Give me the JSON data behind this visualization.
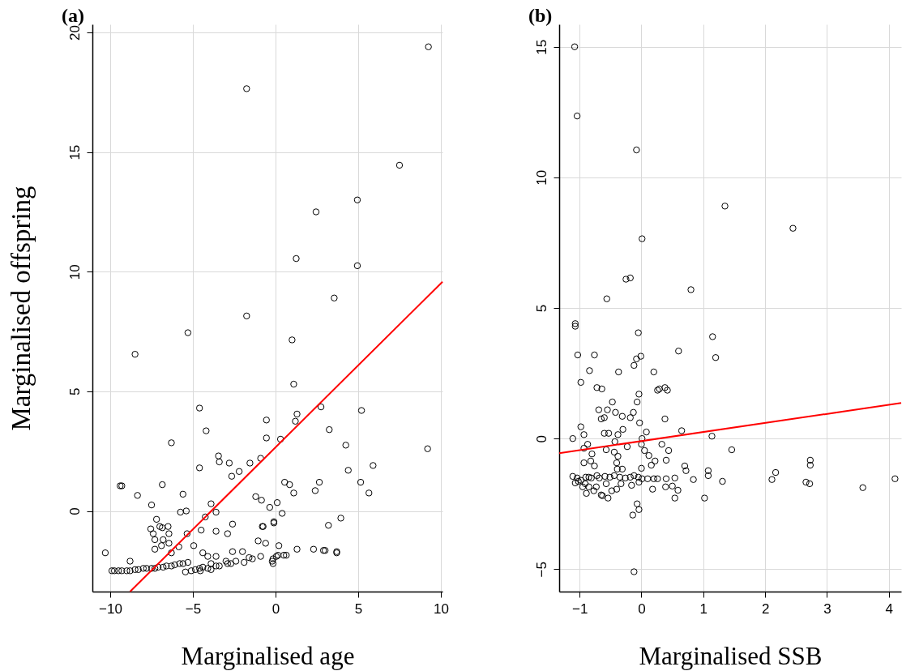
{
  "chart_data": [
    {
      "type": "scatter",
      "title": "(a)",
      "xlabel": "Marginalised age",
      "ylabel": "Marginalised  offspring",
      "xlim": [
        -11.08,
        10.1
      ],
      "ylim": [
        -3.37,
        20.34
      ],
      "xticks": [
        -10,
        -5,
        0,
        5,
        10
      ],
      "yticks": [
        0,
        5,
        10,
        15,
        20
      ],
      "grid": true,
      "series": [
        {
          "type": "scatter",
          "marker": "circle",
          "color": "#000000",
          "x": [
            -10.3,
            -9.9,
            -9.75,
            -9.5,
            -9.3,
            -9.0,
            -8.8,
            -8.5,
            -8.3,
            -8.0,
            -7.8,
            -7.5,
            -7.3,
            -7.1,
            -6.8,
            -6.6,
            -6.3,
            -6.1,
            -5.8,
            -5.6,
            -5.3,
            -5.1,
            -4.85,
            -4.6,
            -4.4,
            -4.1,
            -3.9,
            -3.6,
            -3.4,
            -2.9,
            -2.4,
            -1.9,
            -1.4,
            -0.9,
            -0.2,
            0.05,
            0.5,
            1.3,
            2.3,
            3.0,
            3.7,
            -9.4,
            -9.3,
            -8.35,
            -6.85,
            -7.5,
            -7.2,
            -7.55,
            -7.4,
            -7.3,
            -7.3,
            -7.0,
            -6.85,
            -6.5,
            -6.45,
            -6.8,
            -6.45,
            -6.9,
            -8.8,
            -5.75,
            -5.4,
            -5.6,
            -4.6,
            -3.9,
            -3.6,
            -4.25,
            -5.35,
            -4.5,
            -3.6,
            -4.95,
            -5.85,
            -6.3,
            -4.4,
            -4.1,
            -3.6,
            -2.6,
            -2.0,
            -1.6,
            -3.0,
            -2.7,
            -2.9,
            -2.6,
            -1.05,
            -0.6,
            -0.8,
            -1.2,
            -0.85,
            -0.35,
            -0.1,
            -0.15,
            -0.15,
            -2.2,
            -2.65,
            -1.55,
            -2.8,
            -3.45,
            -3.4,
            -0.9,
            0.1,
            -3.9,
            -4.55,
            -5.45,
            1.0,
            1.1,
            1.3,
            1.2,
            2.75,
            5.2,
            -0.55,
            -0.55,
            0.3,
            3.25,
            4.25,
            9.2,
            5.9,
            4.4,
            0.55,
            0.85,
            1.1,
            2.65,
            2.4,
            5.15,
            5.65,
            0.4,
            -0.1,
            -0.75,
            3.95,
            3.2,
            0.2,
            2.9,
            3.7,
            0.15,
            0.65,
            -1.75,
            9.25,
            7.5,
            4.95,
            2.45,
            1.25,
            4.95,
            3.55,
            -1.75,
            -5.3,
            -8.5,
            -6.3,
            -4.6,
            -4.2
          ],
          "values": [
            -1.75,
            -2.5,
            -2.5,
            -2.5,
            -2.5,
            -2.5,
            -2.5,
            -2.45,
            -2.45,
            -2.4,
            -2.4,
            -2.4,
            -2.4,
            -2.35,
            -2.35,
            -2.3,
            -2.3,
            -2.25,
            -2.2,
            -2.2,
            -2.15,
            -2.5,
            -2.45,
            -2.4,
            -2.35,
            -2.4,
            -2.45,
            -2.3,
            -2.3,
            -2.2,
            -2.1,
            -2.15,
            -2.0,
            -1.9,
            -2.1,
            -1.9,
            -1.85,
            -1.6,
            -1.6,
            -1.65,
            -1.7,
            1.05,
            1.05,
            0.65,
            1.1,
            0.25,
            -0.35,
            -0.75,
            -0.95,
            -1.2,
            -1.6,
            -0.65,
            -0.7,
            -0.65,
            -0.95,
            -1.2,
            -1.35,
            -1.45,
            -2.1,
            -0.05,
            0.0,
            0.7,
            1.8,
            0.3,
            -0.05,
            -0.25,
            -0.95,
            -0.8,
            -0.85,
            -1.45,
            -1.5,
            -1.75,
            -1.75,
            -1.9,
            -1.9,
            -1.7,
            -1.7,
            -1.95,
            -2.1,
            -2.2,
            -0.95,
            -0.55,
            -1.25,
            -1.35,
            -0.65,
            0.6,
            0.45,
            0.15,
            -0.5,
            -2.0,
            -2.2,
            1.65,
            1.45,
            2.0,
            2.0,
            2.3,
            2.05,
            2.2,
            0.35,
            -2.2,
            -2.5,
            -2.55,
            7.15,
            5.3,
            4.05,
            3.75,
            4.35,
            4.2,
            3.8,
            3.05,
            3.0,
            3.4,
            2.75,
            2.6,
            1.9,
            1.7,
            1.2,
            1.1,
            0.75,
            1.2,
            0.85,
            1.2,
            0.75,
            -0.1,
            -0.45,
            -0.65,
            -0.3,
            -0.6,
            -1.45,
            -1.65,
            -1.75,
            -1.85,
            -1.85,
            17.65,
            19.4,
            14.45,
            13.0,
            12.5,
            10.55,
            10.25,
            8.9,
            8.15,
            7.45,
            6.55,
            2.85,
            4.3,
            3.35
          ]
        },
        {
          "type": "line",
          "color": "#ff0000",
          "x": [
            -8.8,
            10.1
          ],
          "values": [
            -3.37,
            9.58
          ]
        }
      ]
    },
    {
      "type": "scatter",
      "title": "(b)",
      "xlabel": "Marginalised SSB",
      "xlim": [
        -1.33,
        4.2
      ],
      "ylim": [
        -5.86,
        15.86
      ],
      "xticks": [
        -1,
        0,
        1,
        2,
        3,
        4
      ],
      "yticks": [
        -5,
        0,
        5,
        10,
        15
      ],
      "grid": true,
      "series": [
        {
          "type": "scatter",
          "marker": "circle",
          "color": "#000000",
          "x": [
            -1.08,
            -1.04,
            -0.08,
            0.01,
            1.35,
            2.45,
            0.8,
            -0.56,
            -0.25,
            -0.18,
            1.15,
            1.2,
            0.6,
            -1.07,
            -1.07,
            -0.05,
            -1.03,
            -0.76,
            -0.08,
            -0.01,
            -0.12,
            -0.84,
            -0.37,
            0.2,
            -0.98,
            -0.72,
            -0.64,
            0.26,
            0.29,
            0.38,
            0.42,
            -0.04,
            -0.07,
            -0.47,
            -0.69,
            -0.55,
            -0.42,
            -0.13,
            -0.65,
            -0.6,
            -0.31,
            -0.18,
            0.38,
            -0.03,
            -0.98,
            -0.3,
            -0.93,
            -0.6,
            -0.53,
            -0.38,
            0.08,
            0.65,
            -1.11,
            0.01,
            -0.43,
            -0.87,
            -0.93,
            -0.23,
            0.0,
            -0.57,
            0.05,
            -0.8,
            -0.44,
            -0.38,
            0.12,
            0.33,
            0.44,
            0.4,
            0.22,
            0.16,
            -0.93,
            -0.82,
            -0.76,
            -0.4,
            -0.39,
            -0.31,
            0.0,
            0.7,
            0.72,
            -1.11,
            -1.04,
            -0.98,
            -0.91,
            -0.85,
            -0.77,
            -1.07,
            -1.02,
            -0.95,
            -0.89,
            -0.9,
            -0.85,
            -0.81,
            -0.72,
            -0.68,
            -0.59,
            -0.51,
            -0.44,
            -0.35,
            -0.26,
            -0.18,
            -0.12,
            -0.05,
            0.01,
            0.1,
            0.2,
            0.26,
            0.4,
            0.54,
            -0.73,
            -0.57,
            -0.48,
            -0.4,
            -0.33,
            -0.16,
            -0.04,
            0.18,
            0.39,
            0.5,
            0.59,
            0.54,
            -0.65,
            -0.63,
            -0.54,
            -0.07,
            -0.04,
            -0.14,
            -0.12,
            1.14,
            1.46,
            1.08,
            1.08,
            0.84,
            1.31,
            1.02,
            2.17,
            2.11,
            2.73,
            2.73,
            2.66,
            2.72,
            3.58,
            4.1
          ],
          "values": [
            15.0,
            12.35,
            11.05,
            7.65,
            8.9,
            8.05,
            5.7,
            5.35,
            6.1,
            6.15,
            3.9,
            3.1,
            3.35,
            4.4,
            4.3,
            4.05,
            3.2,
            3.2,
            3.05,
            3.15,
            2.8,
            2.6,
            2.55,
            2.55,
            2.15,
            1.95,
            1.9,
            1.85,
            1.9,
            1.95,
            1.85,
            1.7,
            1.4,
            1.4,
            1.1,
            1.1,
            1.0,
            1.0,
            0.75,
            0.8,
            0.85,
            0.8,
            0.75,
            0.6,
            0.45,
            0.35,
            0.15,
            0.2,
            0.2,
            0.15,
            0.25,
            0.3,
            0.0,
            0.0,
            -0.12,
            -0.22,
            -0.37,
            -0.31,
            -0.22,
            -0.43,
            -0.46,
            -0.59,
            -0.52,
            -0.68,
            -0.65,
            -0.22,
            -0.46,
            -0.83,
            -0.86,
            -1.02,
            -0.93,
            -0.86,
            -1.05,
            -0.93,
            -1.17,
            -1.17,
            -1.14,
            -1.05,
            -1.23,
            -1.45,
            -1.51,
            -1.6,
            -1.73,
            -1.85,
            -2.0,
            -1.7,
            -1.64,
            -1.85,
            -2.1,
            -1.48,
            -1.48,
            -1.51,
            -1.42,
            -1.51,
            -1.45,
            -1.48,
            -1.42,
            -1.48,
            -1.51,
            -1.48,
            -1.42,
            -1.48,
            -1.54,
            -1.54,
            -1.54,
            -1.54,
            -1.54,
            -1.51,
            -1.85,
            -1.73,
            -2.0,
            -1.94,
            -1.73,
            -1.79,
            -1.67,
            -1.94,
            -1.85,
            -1.82,
            -1.98,
            -2.28,
            -2.16,
            -2.19,
            -2.28,
            -2.5,
            -2.72,
            -2.93,
            -5.1,
            0.09,
            -0.43,
            -1.23,
            -1.42,
            -1.57,
            -1.64,
            -2.28,
            -1.3,
            -1.57,
            -0.83,
            -1.02,
            -1.67,
            -1.73,
            -1.88,
            -1.54
          ]
        },
        {
          "type": "line",
          "color": "#ff0000",
          "x": [
            -1.33,
            4.2
          ],
          "values": [
            -0.56,
            1.36
          ]
        }
      ]
    }
  ]
}
